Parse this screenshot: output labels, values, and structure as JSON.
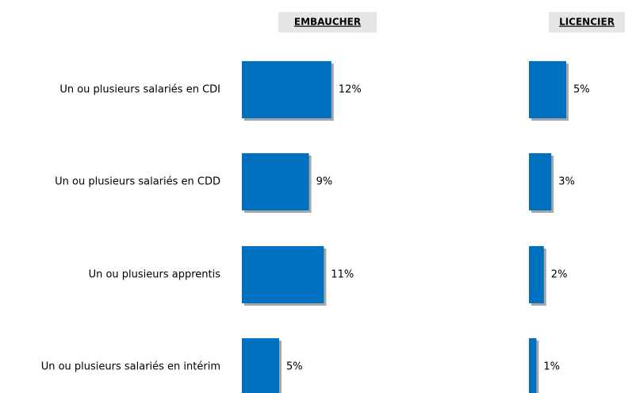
{
  "chart_data": {
    "type": "bar",
    "orientation": "horizontal",
    "categories": [
      "Un ou plusieurs salariés en CDI",
      "Un ou plusieurs salariés en CDD",
      "Un ou plusieurs apprentis",
      "Un ou plusieurs salariés en intérim"
    ],
    "series": [
      {
        "name": "EMBAUCHER",
        "color": "#0070c0",
        "values": [
          12,
          9,
          11,
          5
        ],
        "value_labels": [
          "12%",
          "9%",
          "11%",
          "5%"
        ]
      },
      {
        "name": "LICENCIER",
        "color": "#0070c0",
        "values": [
          5,
          3,
          2,
          1
        ],
        "value_labels": [
          "5%",
          "3%",
          "2%",
          "1%"
        ]
      }
    ]
  }
}
